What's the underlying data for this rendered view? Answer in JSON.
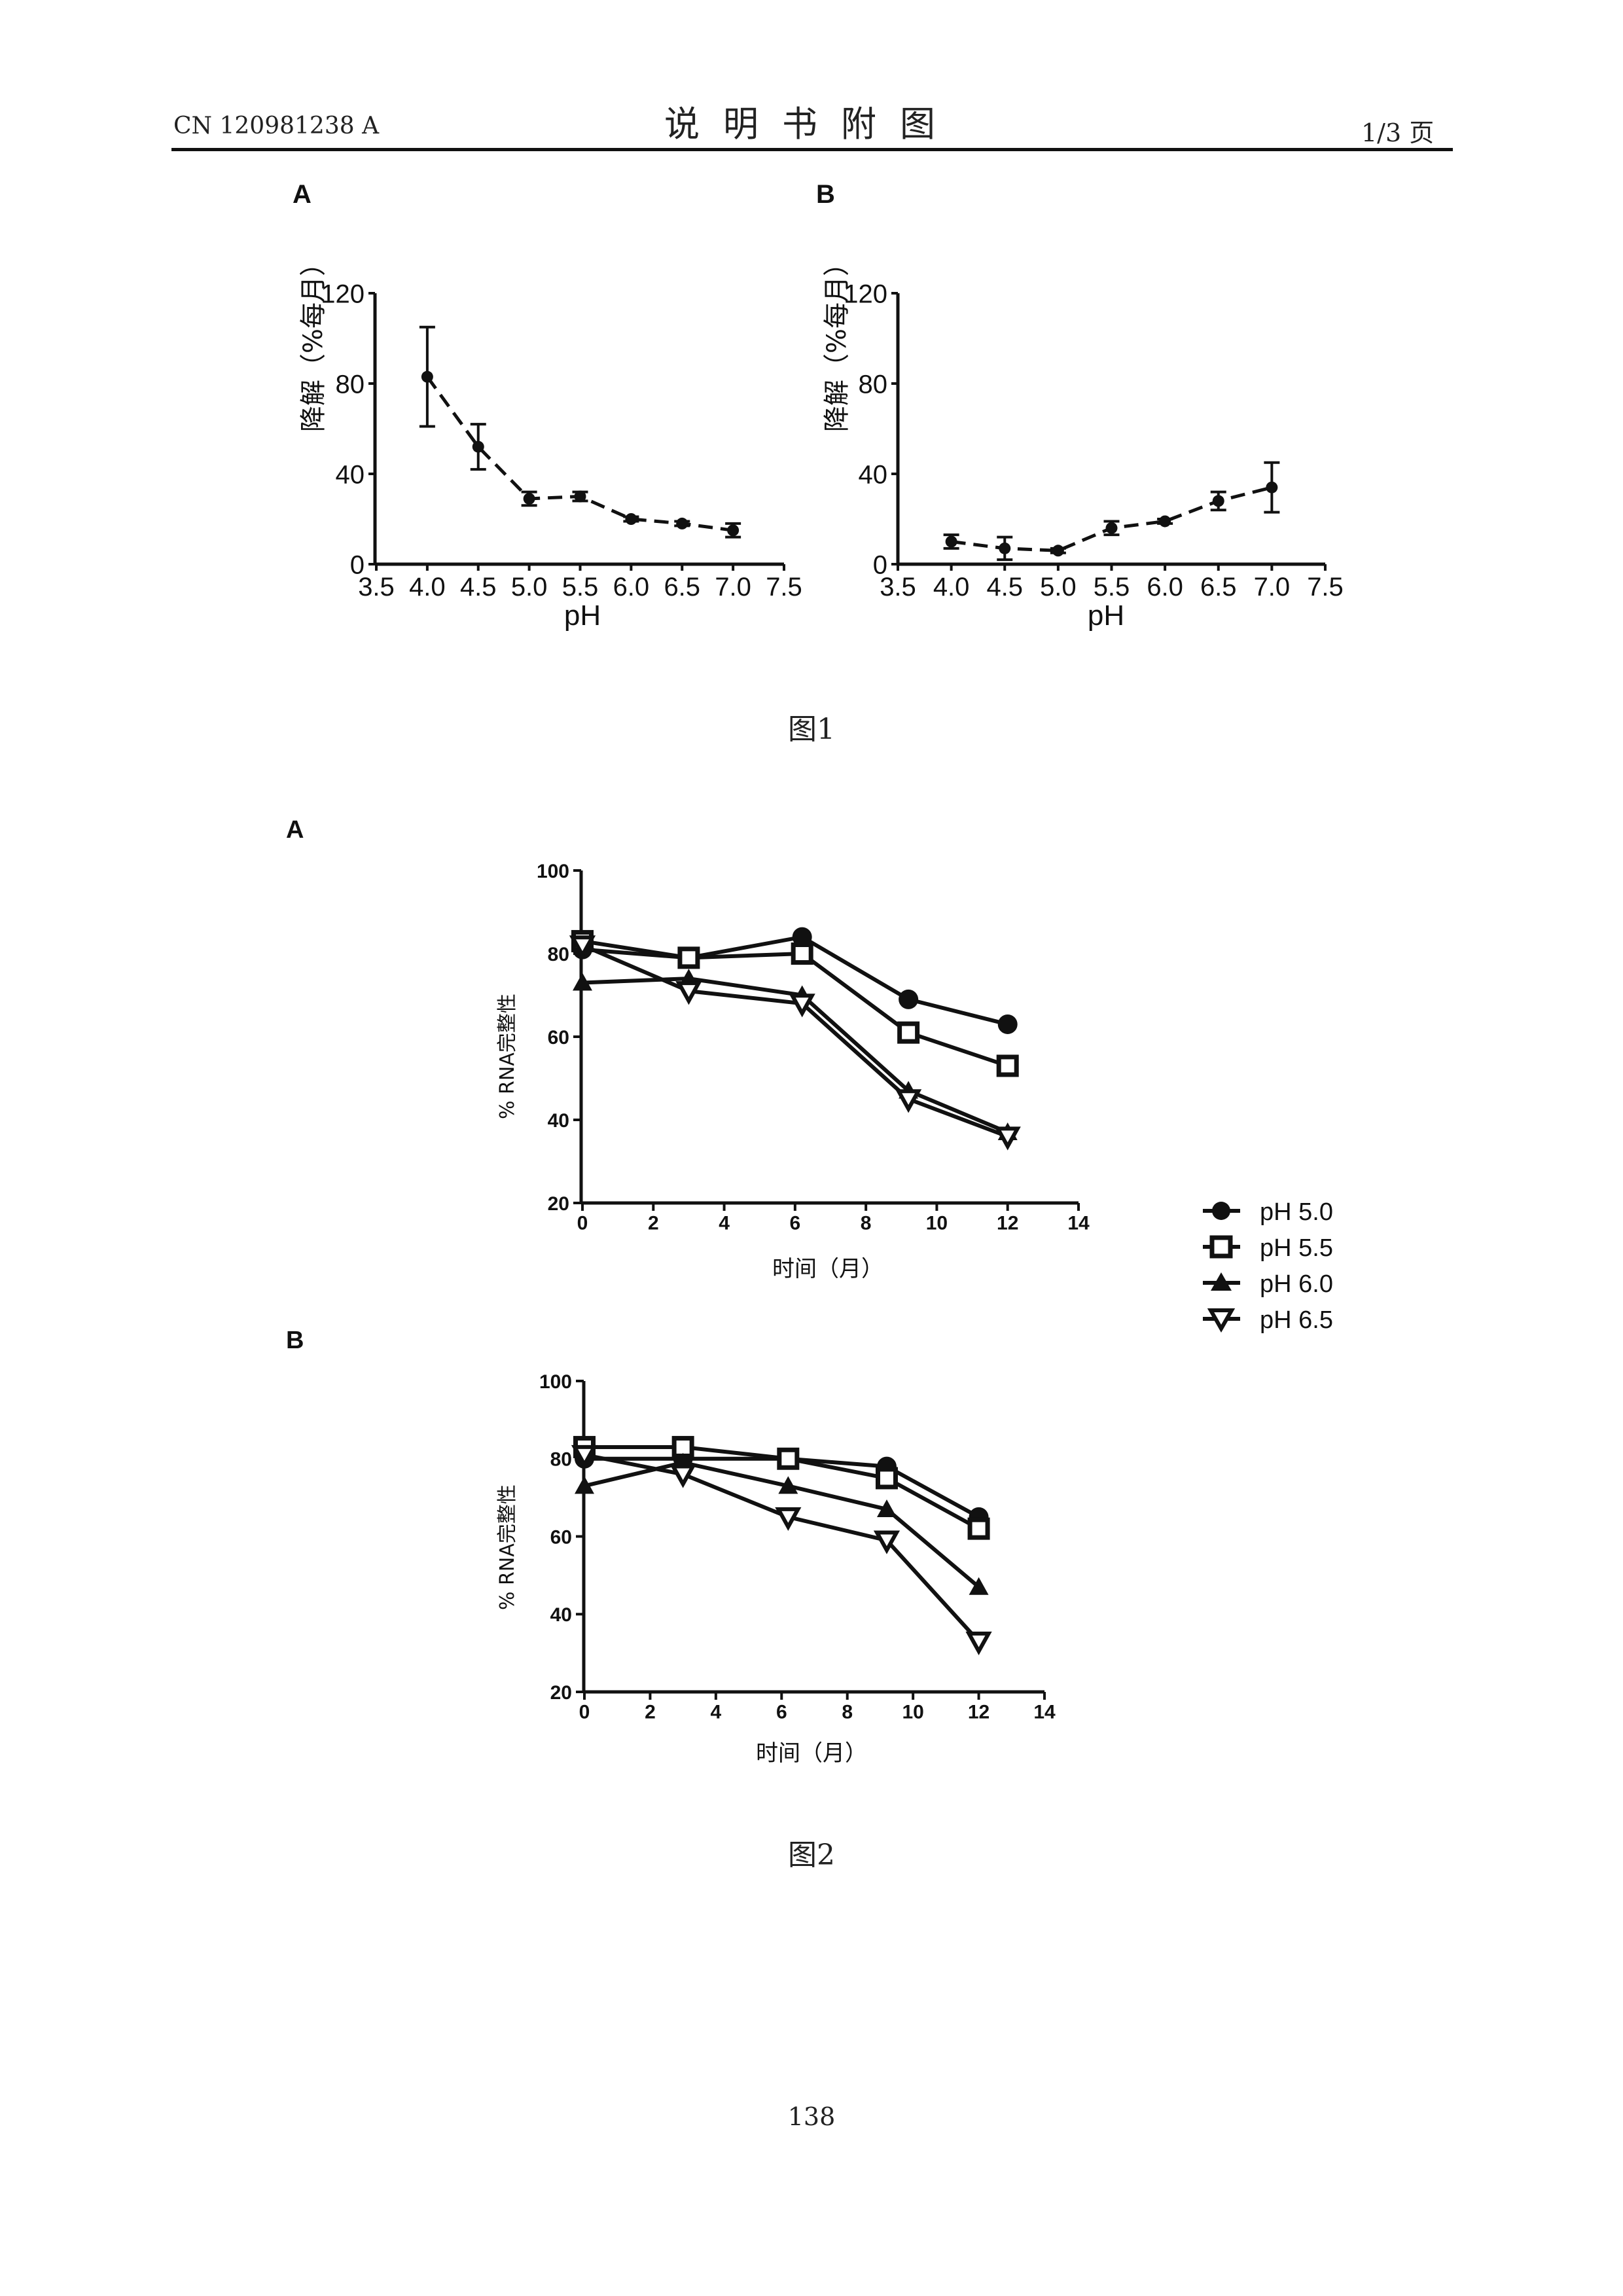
{
  "header": {
    "patent_number": "CN 120981238 A",
    "title": "说明书附图",
    "page_of": "1/3 页"
  },
  "figure1": {
    "caption": "图1",
    "panels": [
      {
        "letter": "A",
        "ylabel": "降解（%每月）",
        "xlabel": "pH"
      },
      {
        "letter": "B",
        "ylabel": "降解（%每月）",
        "xlabel": "pH"
      }
    ]
  },
  "figure2": {
    "caption": "图2",
    "panels": [
      {
        "letter": "A",
        "ylabel": "% RNA完整性",
        "xlabel": "时间（月）"
      },
      {
        "letter": "B",
        "ylabel": "% RNA完整性",
        "xlabel": "时间（月）"
      }
    ],
    "legend": [
      "pH 5.0",
      "pH 5.5",
      "pH 6.0",
      "pH 6.5"
    ]
  },
  "page_number": "138",
  "chart_data": [
    {
      "id": "fig1A",
      "type": "line",
      "title": "A",
      "xlabel": "pH",
      "ylabel": "降解（%每月）",
      "xlim": [
        3.5,
        7.5
      ],
      "ylim": [
        0,
        120
      ],
      "xticks": [
        "3.5",
        "4.0",
        "4.5",
        "5.0",
        "5.5",
        "6.0",
        "6.5",
        "7.0",
        "7.5"
      ],
      "yticks": [
        "0",
        "40",
        "80",
        "120"
      ],
      "x": [
        4.0,
        4.5,
        5.0,
        5.5,
        6.0,
        6.5,
        7.0
      ],
      "y": [
        83,
        52,
        29,
        30,
        20,
        18,
        15
      ],
      "err": [
        22,
        10,
        3,
        2,
        1,
        1,
        3
      ]
    },
    {
      "id": "fig1B",
      "type": "line",
      "title": "B",
      "xlabel": "pH",
      "ylabel": "降解（%每月）",
      "xlim": [
        3.5,
        7.5
      ],
      "ylim": [
        0,
        120
      ],
      "xticks": [
        "3.5",
        "4.0",
        "4.5",
        "5.0",
        "5.5",
        "6.0",
        "6.5",
        "7.0",
        "7.5"
      ],
      "yticks": [
        "0",
        "40",
        "80",
        "120"
      ],
      "x": [
        4.0,
        4.5,
        5.0,
        5.5,
        6.0,
        6.5,
        7.0
      ],
      "y": [
        10,
        7,
        6,
        16,
        19,
        28,
        34
      ],
      "err": [
        3,
        5,
        1,
        3,
        1,
        4,
        11
      ]
    },
    {
      "id": "fig2A",
      "type": "line",
      "title": "A",
      "xlabel": "时间（月）",
      "ylabel": "% RNA完整性",
      "xlim": [
        0,
        14
      ],
      "ylim": [
        20,
        100
      ],
      "xticks": [
        "0",
        "2",
        "4",
        "6",
        "8",
        "10",
        "12",
        "14"
      ],
      "yticks": [
        "20",
        "40",
        "60",
        "80",
        "100"
      ],
      "series": [
        {
          "name": "pH 5.0",
          "marker": "circle",
          "x": [
            0,
            3,
            6.2,
            9.2,
            12
          ],
          "y": [
            81,
            79,
            84,
            69,
            63
          ]
        },
        {
          "name": "pH 5.5",
          "marker": "square",
          "x": [
            0,
            3,
            6.2,
            9.2,
            12
          ],
          "y": [
            83,
            79,
            80,
            61,
            53
          ]
        },
        {
          "name": "pH 6.0",
          "marker": "triangle",
          "x": [
            0,
            3,
            6.2,
            9.2,
            12
          ],
          "y": [
            73,
            74,
            70,
            47,
            37
          ]
        },
        {
          "name": "pH 6.5",
          "marker": "inverted-triangle",
          "x": [
            0,
            3,
            6.2,
            9.2,
            12
          ],
          "y": [
            82,
            71,
            68,
            45,
            36
          ]
        }
      ]
    },
    {
      "id": "fig2B",
      "type": "line",
      "title": "B",
      "xlabel": "时间（月）",
      "ylabel": "% RNA完整性",
      "xlim": [
        0,
        14
      ],
      "ylim": [
        20,
        100
      ],
      "xticks": [
        "0",
        "2",
        "4",
        "6",
        "8",
        "10",
        "12",
        "14"
      ],
      "yticks": [
        "20",
        "40",
        "60",
        "80",
        "100"
      ],
      "series": [
        {
          "name": "pH 5.0",
          "marker": "circle",
          "x": [
            0,
            3,
            6.2,
            9.2,
            12
          ],
          "y": [
            80,
            80,
            80,
            78,
            65
          ]
        },
        {
          "name": "pH 5.5",
          "marker": "square",
          "x": [
            0,
            3,
            6.2,
            9.2,
            12
          ],
          "y": [
            83,
            83,
            80,
            75,
            62
          ]
        },
        {
          "name": "pH 6.0",
          "marker": "triangle",
          "x": [
            0,
            3,
            6.2,
            9.2,
            12
          ],
          "y": [
            73,
            79,
            73,
            67,
            47
          ]
        },
        {
          "name": "pH 6.5",
          "marker": "inverted-triangle",
          "x": [
            0,
            3,
            6.2,
            9.2,
            12
          ],
          "y": [
            81,
            76,
            65,
            59,
            33
          ]
        }
      ]
    }
  ]
}
